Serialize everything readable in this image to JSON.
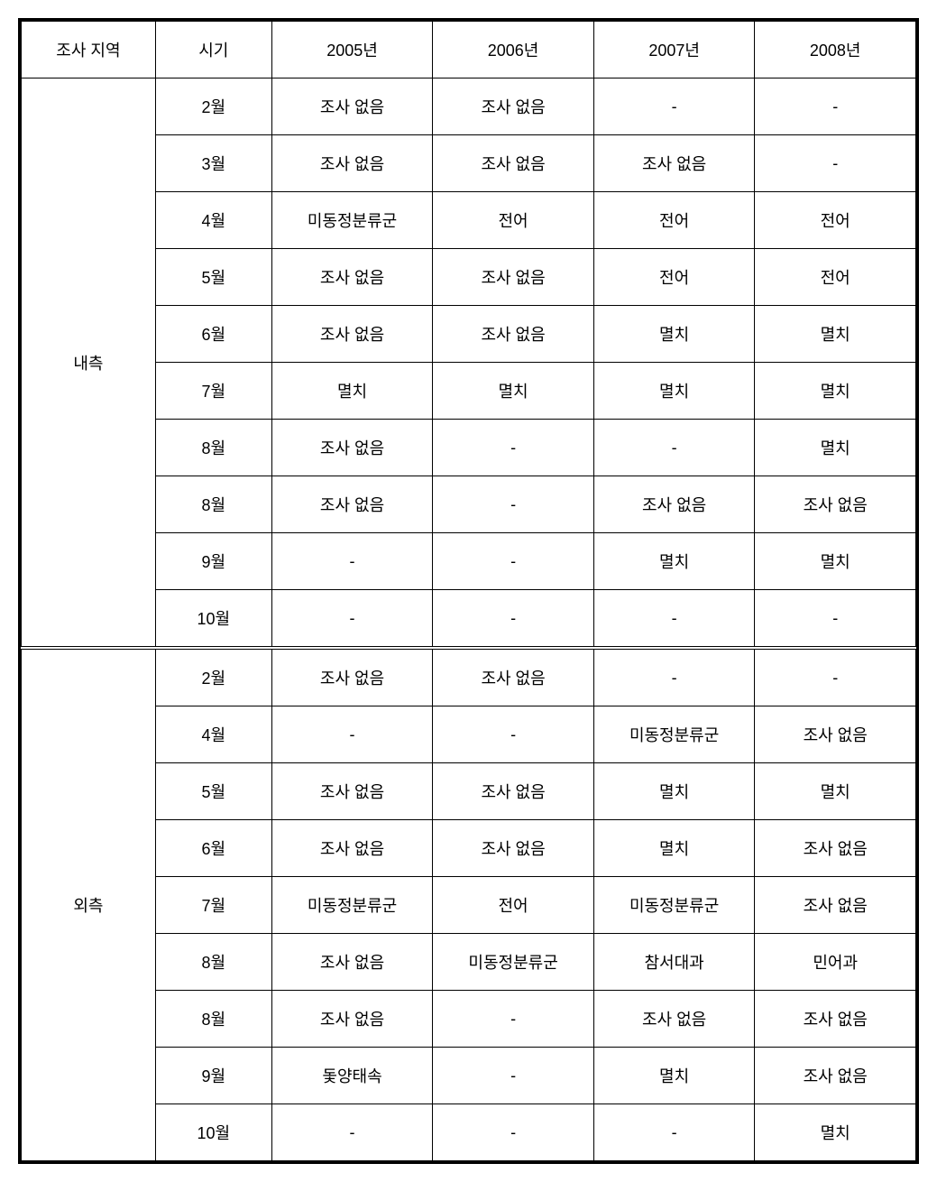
{
  "headers": {
    "region": "조사 지역",
    "period": "시기",
    "y2005": "2005년",
    "y2006": "2006년",
    "y2007": "2007년",
    "y2008": "2008년"
  },
  "sections": [
    {
      "region": "내측",
      "rows": [
        {
          "period": "2월",
          "y2005": "조사 없음",
          "y2006": "조사 없음",
          "y2007": "-",
          "y2008": "-"
        },
        {
          "period": "3월",
          "y2005": "조사 없음",
          "y2006": "조사 없음",
          "y2007": "조사 없음",
          "y2008": "-"
        },
        {
          "period": "4월",
          "y2005": "미동정분류군",
          "y2006": "전어",
          "y2007": "전어",
          "y2008": "전어"
        },
        {
          "period": "5월",
          "y2005": "조사 없음",
          "y2006": "조사 없음",
          "y2007": "전어",
          "y2008": "전어"
        },
        {
          "period": "6월",
          "y2005": "조사 없음",
          "y2006": "조사 없음",
          "y2007": "멸치",
          "y2008": "멸치"
        },
        {
          "period": "7월",
          "y2005": "멸치",
          "y2006": "멸치",
          "y2007": "멸치",
          "y2008": "멸치"
        },
        {
          "period": "8월",
          "y2005": "조사 없음",
          "y2006": "-",
          "y2007": "-",
          "y2008": "멸치"
        },
        {
          "period": "8월",
          "y2005": "조사 없음",
          "y2006": "-",
          "y2007": "조사 없음",
          "y2008": "조사 없음"
        },
        {
          "period": "9월",
          "y2005": "-",
          "y2006": "-",
          "y2007": "멸치",
          "y2008": "멸치"
        },
        {
          "period": "10월",
          "y2005": "-",
          "y2006": "-",
          "y2007": "-",
          "y2008": "-"
        }
      ]
    },
    {
      "region": "외측",
      "rows": [
        {
          "period": "2월",
          "y2005": "조사 없음",
          "y2006": "조사 없음",
          "y2007": "-",
          "y2008": "-"
        },
        {
          "period": "4월",
          "y2005": "-",
          "y2006": "-",
          "y2007": "미동정분류군",
          "y2008": "조사 없음"
        },
        {
          "period": "5월",
          "y2005": "조사 없음",
          "y2006": "조사 없음",
          "y2007": "멸치",
          "y2008": "멸치"
        },
        {
          "period": "6월",
          "y2005": "조사 없음",
          "y2006": "조사 없음",
          "y2007": "멸치",
          "y2008": "조사 없음"
        },
        {
          "period": "7월",
          "y2005": "미동정분류군",
          "y2006": "전어",
          "y2007": "미동정분류군",
          "y2008": "조사 없음"
        },
        {
          "period": "8월",
          "y2005": "조사 없음",
          "y2006": "미동정분류군",
          "y2007": "참서대과",
          "y2008": "민어과"
        },
        {
          "period": "8월",
          "y2005": "조사 없음",
          "y2006": "-",
          "y2007": "조사 없음",
          "y2008": "조사 없음"
        },
        {
          "period": "9월",
          "y2005": "돛양태속",
          "y2006": "-",
          "y2007": "멸치",
          "y2008": "조사 없음"
        },
        {
          "period": "10월",
          "y2005": "-",
          "y2006": "-",
          "y2007": "-",
          "y2008": "멸치"
        }
      ]
    }
  ],
  "styling": {
    "border_color": "#000000",
    "background_color": "#ffffff",
    "text_color": "#000000",
    "font_size": 18,
    "outer_border_width": 3,
    "cell_padding": 18
  }
}
